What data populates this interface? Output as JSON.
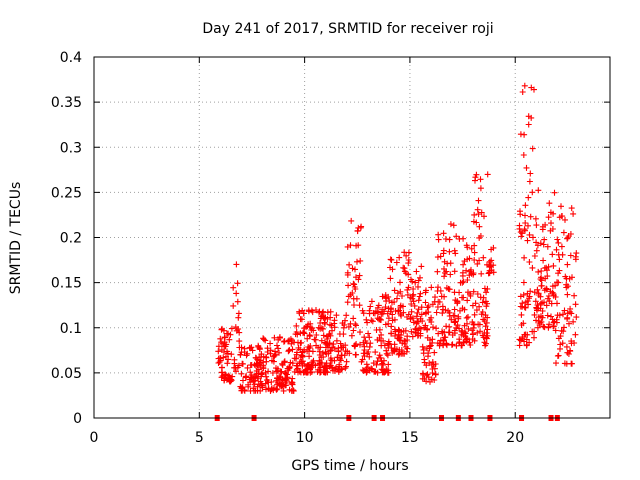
{
  "chart_data": {
    "type": "scatter",
    "title": "Day 241 of 2017, SRMTID for receiver roji",
    "xlabel": "GPS time / hours",
    "ylabel": "SRMTID / TECUs",
    "xlim": [
      0,
      24.5
    ],
    "ylim": [
      0,
      0.4
    ],
    "xticks": [
      0,
      5,
      10,
      15,
      20
    ],
    "yticks": [
      0,
      0.05,
      0.1,
      0.15,
      0.2,
      0.25,
      0.3,
      0.35,
      0.4
    ],
    "ytick_labels": [
      "0",
      "0.05",
      "0.1",
      "0.15",
      "0.2",
      "0.25",
      "0.3",
      "0.35",
      "0.4"
    ],
    "grid": true,
    "series_color": "#ff0000",
    "clusters": [
      {
        "start": 5.9,
        "end": 6.6,
        "low": 0.04,
        "high": 0.1,
        "n": 60
      },
      {
        "start": 6.6,
        "end": 6.9,
        "low": 0.05,
        "high": 0.18,
        "n": 20
      },
      {
        "start": 6.9,
        "end": 8.0,
        "low": 0.03,
        "high": 0.08,
        "n": 90
      },
      {
        "start": 8.0,
        "end": 9.5,
        "low": 0.03,
        "high": 0.09,
        "n": 120
      },
      {
        "start": 9.5,
        "end": 10.8,
        "low": 0.05,
        "high": 0.12,
        "n": 120
      },
      {
        "start": 10.8,
        "end": 12.0,
        "low": 0.05,
        "high": 0.12,
        "n": 110
      },
      {
        "start": 12.0,
        "end": 12.7,
        "low": 0.07,
        "high": 0.22,
        "n": 50
      },
      {
        "start": 12.7,
        "end": 14.0,
        "low": 0.05,
        "high": 0.14,
        "n": 110
      },
      {
        "start": 14.0,
        "end": 15.0,
        "low": 0.07,
        "high": 0.19,
        "n": 90
      },
      {
        "start": 15.0,
        "end": 15.6,
        "low": 0.09,
        "high": 0.17,
        "n": 50
      },
      {
        "start": 15.6,
        "end": 16.3,
        "low": 0.04,
        "high": 0.15,
        "n": 60
      },
      {
        "start": 16.3,
        "end": 17.2,
        "low": 0.08,
        "high": 0.22,
        "n": 80
      },
      {
        "start": 17.2,
        "end": 18.0,
        "low": 0.08,
        "high": 0.2,
        "n": 70
      },
      {
        "start": 18.0,
        "end": 18.7,
        "low": 0.08,
        "high": 0.27,
        "n": 70
      },
      {
        "start": 18.7,
        "end": 19.0,
        "low": 0.16,
        "high": 0.2,
        "n": 15
      },
      {
        "start": 20.2,
        "end": 20.9,
        "low": 0.08,
        "high": 0.37,
        "n": 70
      },
      {
        "start": 20.9,
        "end": 21.9,
        "low": 0.1,
        "high": 0.26,
        "n": 90
      },
      {
        "start": 21.9,
        "end": 22.9,
        "low": 0.06,
        "high": 0.24,
        "n": 80
      }
    ],
    "baseline_markers_x": [
      5.85,
      7.6,
      12.1,
      13.3,
      13.7,
      16.5,
      17.3,
      17.9,
      18.8,
      20.3,
      21.7,
      22.0
    ]
  }
}
